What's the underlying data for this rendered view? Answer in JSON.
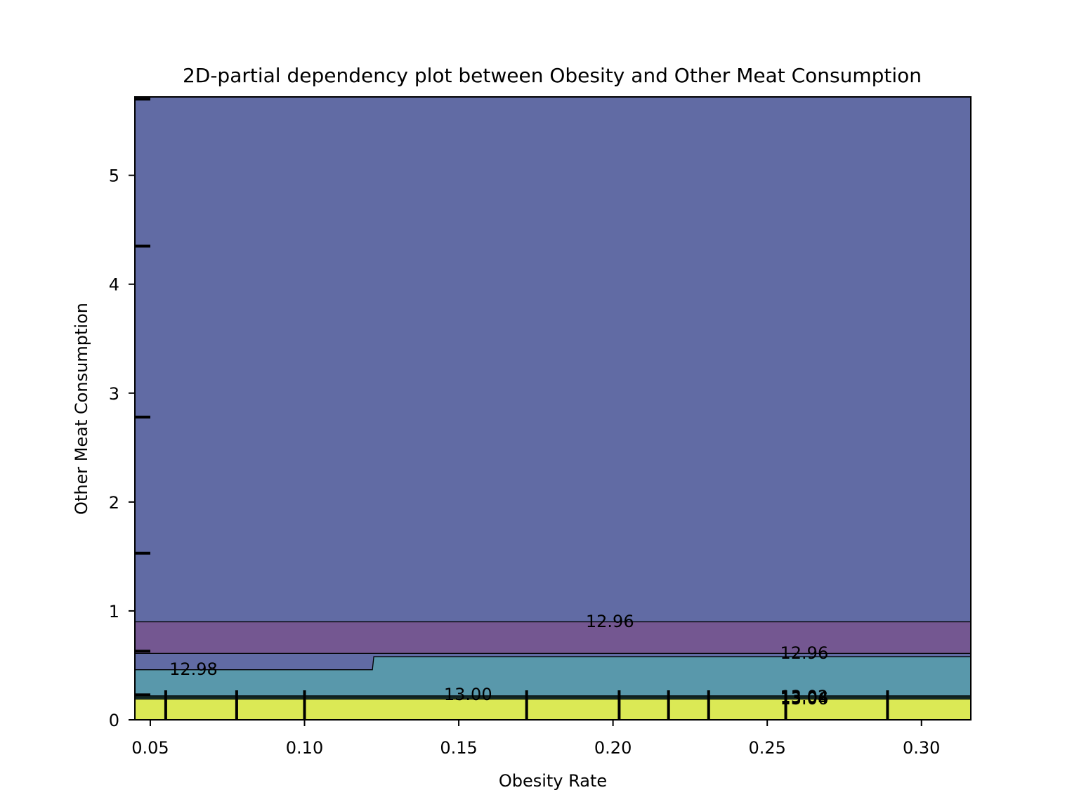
{
  "chart_data": {
    "type": "contour",
    "title": "2D-partial dependency plot between Obesity and Other Meat Consumption",
    "xlabel": "Obesity Rate",
    "ylabel": "Other Meat Consumption",
    "xlim": [
      0.045,
      0.316
    ],
    "ylim": [
      0,
      5.72
    ],
    "x_ticks": [
      0.05,
      0.1,
      0.15,
      0.2,
      0.25,
      0.3
    ],
    "x_tick_labels": [
      "0.05",
      "0.10",
      "0.15",
      "0.20",
      "0.25",
      "0.30"
    ],
    "y_ticks": [
      0,
      1,
      2,
      3,
      4,
      5
    ],
    "y_tick_labels": [
      "0",
      "1",
      "2",
      "3",
      "4",
      "5"
    ],
    "grid": false,
    "colormap": "viridis",
    "fill_alpha": 0.75,
    "bands": [
      {
        "label": "< 12.96",
        "color": "#2c3a86",
        "boundary_lower": 0.9,
        "boundary_upper": 5.72
      },
      {
        "label": "12.96 – 12.96",
        "color": "#461f6c",
        "boundary_lower": 0.61,
        "boundary_upper": 0.9
      },
      {
        "label": "12.96 – 12.98",
        "color": "#2c3a86",
        "boundary_lower_left": 0.46,
        "boundary_lower_right": 0.58,
        "boundary_upper": 0.61
      },
      {
        "label": "12.98 – 13.00",
        "color": "#21758f",
        "boundary_lower": 0.22,
        "boundary_upper_left": 0.46,
        "boundary_upper_right": 0.58
      },
      {
        "label": "13.00 – 13.06",
        "color": "#1f9e89",
        "boundary_lower": 0.19,
        "boundary_upper": 0.22
      },
      {
        "label": "> 13.06",
        "color": "#cfe11c",
        "boundary_lower": 0,
        "boundary_upper": 0.19
      }
    ],
    "contour_lines": [
      {
        "level": "12.96",
        "y": 0.9
      },
      {
        "level": "12.96",
        "y": 0.61
      },
      {
        "level": "12.98",
        "y_left": 0.46,
        "y_right": 0.58,
        "x_step": 0.122
      },
      {
        "level": "13.00",
        "y": 0.22
      },
      {
        "level": "13.02",
        "y": 0.21
      },
      {
        "level": "13.04",
        "y": 0.2
      },
      {
        "level": "13.06",
        "y": 0.19
      }
    ],
    "contour_labels": [
      {
        "text": "12.96",
        "x": 0.199,
        "y": 0.91
      },
      {
        "text": "12.96",
        "x": 0.262,
        "y": 0.62
      },
      {
        "text": "12.98",
        "x": 0.064,
        "y": 0.47
      },
      {
        "text": "13.00",
        "x": 0.153,
        "y": 0.24
      },
      {
        "text": "13.02",
        "x": 0.262,
        "y": 0.22
      },
      {
        "text": "13.04",
        "x": 0.262,
        "y": 0.21
      },
      {
        "text": "13.06",
        "x": 0.262,
        "y": 0.2
      }
    ],
    "rug_x": [
      0.055,
      0.078,
      0.1,
      0.172,
      0.202,
      0.218,
      0.231,
      0.256,
      0.289
    ],
    "rug_y": [
      0.23,
      0.63,
      1.53,
      2.78,
      4.35,
      5.7
    ]
  }
}
